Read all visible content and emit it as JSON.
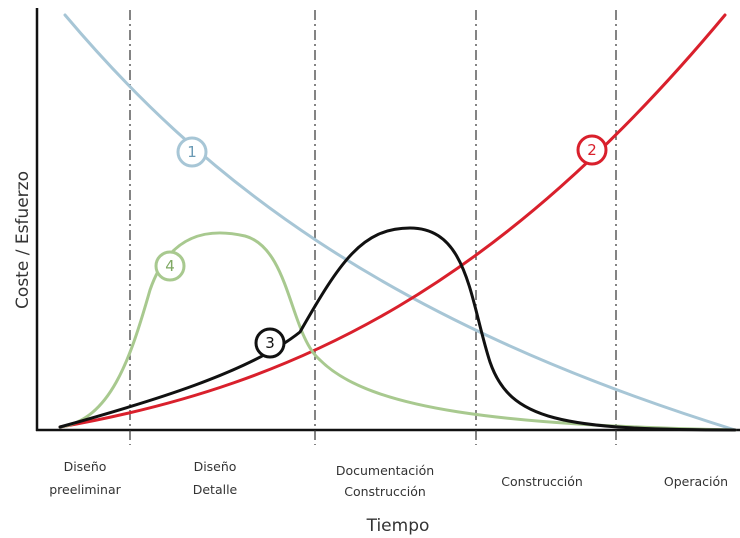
{
  "axes": {
    "y_label": "Coste / Esfuerzo",
    "x_label": "Tiempo"
  },
  "phases": [
    {
      "lines": [
        "Diseño",
        "preeliminar"
      ]
    },
    {
      "lines": [
        "Diseño",
        "Detalle"
      ]
    },
    {
      "lines": [
        "Documentación",
        "Construcción"
      ]
    },
    {
      "lines": [
        "Construcción"
      ]
    },
    {
      "lines": [
        "Operación"
      ]
    }
  ],
  "curves": [
    {
      "label": "1"
    },
    {
      "label": "2"
    },
    {
      "label": "3"
    },
    {
      "label": "4"
    }
  ]
}
